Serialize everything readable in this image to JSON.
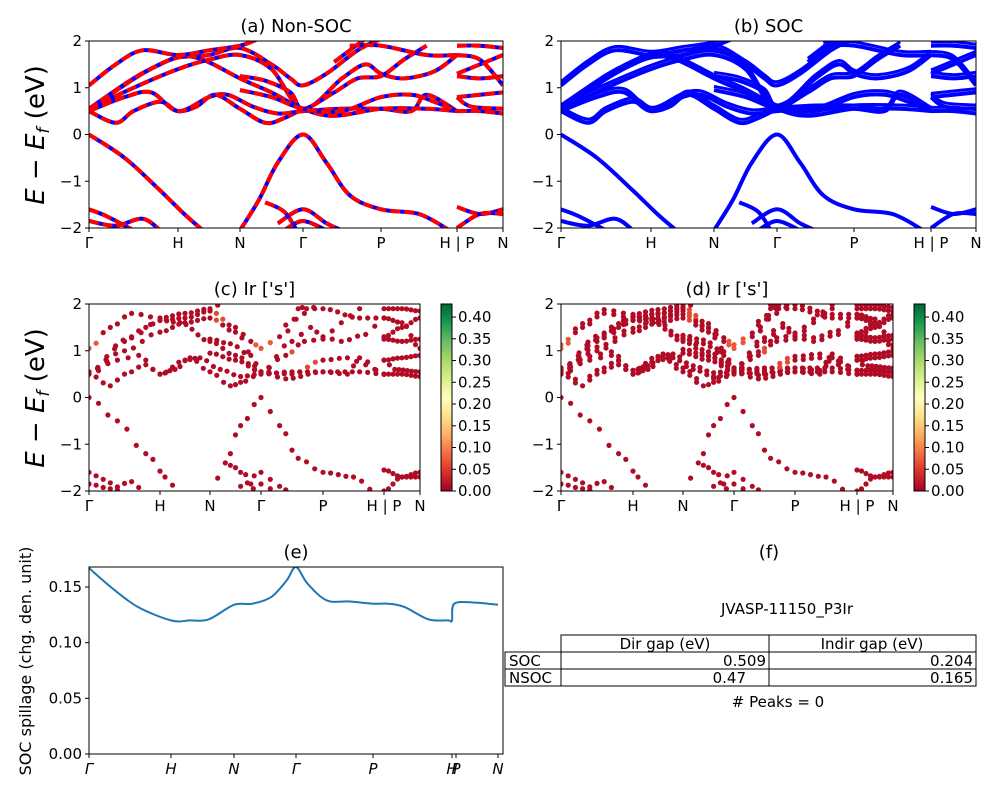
{
  "figure": {
    "material_id": "JVASP-11150_P3Ir",
    "peaks_text": "# Peaks = 0"
  },
  "chart_data": [
    {
      "id": "a",
      "type": "line",
      "title": "(a) Non-SOC",
      "ylabel": "E − E_f (eV)",
      "ylim": [
        -2,
        2
      ],
      "yticks": [
        "2",
        "1",
        "0",
        "−1",
        "−2"
      ],
      "ytick_values": [
        2,
        1,
        0,
        -1,
        -2
      ],
      "xticks": [
        "Γ",
        "H",
        "N",
        "Γ",
        "P",
        "H | P",
        "N"
      ],
      "style": "dashed red/blue overlay (spin up red, spin down blue)",
      "series_colors": [
        "#ff0000",
        "#0000ff"
      ]
    },
    {
      "id": "b",
      "type": "line",
      "title": "(b) SOC",
      "ylim": [
        -2,
        2
      ],
      "yticks": [
        "2",
        "1",
        "0",
        "−1",
        "−2"
      ],
      "ytick_values": [
        2,
        1,
        0,
        -1,
        -2
      ],
      "xticks": [
        "Γ",
        "H",
        "N",
        "Γ",
        "P",
        "H | P",
        "N"
      ],
      "series_colors": [
        "#0000ff"
      ]
    },
    {
      "id": "c",
      "type": "scatter",
      "title": "(c)  Ir ['s']",
      "ylabel": "E − E_f (eV)",
      "ylim": [
        -2,
        2
      ],
      "yticks": [
        "2",
        "1",
        "0",
        "−1",
        "−2"
      ],
      "ytick_values": [
        2,
        1,
        0,
        -1,
        -2
      ],
      "xticks": [
        "Γ",
        "H",
        "N",
        "Γ",
        "P",
        "H | P",
        "N"
      ],
      "colorbar": {
        "min": 0.0,
        "max": 0.43,
        "ticks": [
          "0.00",
          "0.05",
          "0.10",
          "0.15",
          "0.20",
          "0.25",
          "0.30",
          "0.35",
          "0.40"
        ],
        "tick_values": [
          0,
          0.05,
          0.1,
          0.15,
          0.2,
          0.25,
          0.3,
          0.35,
          0.4
        ],
        "colormap": "RdYlGn"
      }
    },
    {
      "id": "d",
      "type": "scatter",
      "title": "(d) Ir ['s']",
      "ylim": [
        -2,
        2
      ],
      "yticks": [
        "2",
        "1",
        "0",
        "−1",
        "−2"
      ],
      "ytick_values": [
        2,
        1,
        0,
        -1,
        -2
      ],
      "xticks": [
        "Γ",
        "H",
        "N",
        "Γ",
        "P",
        "H | P",
        "N"
      ],
      "colorbar": {
        "min": 0.0,
        "max": 0.43,
        "ticks": [
          "0.00",
          "0.05",
          "0.10",
          "0.15",
          "0.20",
          "0.25",
          "0.30",
          "0.35",
          "0.40"
        ],
        "tick_values": [
          0,
          0.05,
          0.1,
          0.15,
          0.2,
          0.25,
          0.3,
          0.35,
          0.4
        ],
        "colormap": "RdYlGn"
      }
    },
    {
      "id": "e",
      "type": "line",
      "title": "(e)",
      "ylabel": "SOC spillage (chg. den. unit)",
      "ylim": [
        0,
        0.168
      ],
      "yticks": [
        "0.15",
        "0.10",
        "0.05",
        "0.00"
      ],
      "ytick_values": [
        0.15,
        0.1,
        0.05,
        0.0
      ],
      "xticks": [
        "Γ",
        "H",
        "N",
        "Γ",
        "P",
        "H",
        "P",
        "N"
      ],
      "series_colors": [
        "#1f77b4"
      ],
      "x": [
        0,
        0.3,
        0.6,
        1.0,
        1.3,
        1.6,
        2.0,
        2.3,
        2.6,
        2.85,
        3.0,
        3.15,
        3.4,
        3.7,
        4.0,
        4.2,
        4.4,
        4.7,
        4.95,
        5.0,
        5.05,
        5.5,
        6.0
      ],
      "values": [
        0.167,
        0.148,
        0.132,
        0.12,
        0.12,
        0.121,
        0.134,
        0.135,
        0.141,
        0.156,
        0.168,
        0.153,
        0.138,
        0.137,
        0.135,
        0.135,
        0.132,
        0.121,
        0.12,
        0.12,
        0.135,
        0.136,
        0.134
      ]
    },
    {
      "id": "f",
      "type": "table",
      "title": "(f)",
      "subtitle": "JVASP-11150_P3Ir",
      "columns": [
        "Dir gap (eV)",
        "Indir gap (eV)"
      ],
      "rows": [
        {
          "label": "SOC",
          "values": [
            "0.509",
            "0.204"
          ]
        },
        {
          "label": "NSOC",
          "values": [
            "0.47",
            "0.165"
          ]
        }
      ],
      "footer": "# Peaks = 0"
    }
  ],
  "bands": {
    "common": [
      [
        [
          0,
          0
        ],
        [
          0.4,
          -0.5
        ],
        [
          0.8,
          -1.2
        ],
        [
          1.1,
          -1.7
        ],
        [
          1.4,
          -2.05
        ]
      ],
      [
        [
          2.0,
          -2.05
        ],
        [
          2.3,
          -1.4
        ],
        [
          2.6,
          -0.6
        ],
        [
          3.0,
          0.0
        ],
        [
          3.3,
          -0.6
        ],
        [
          3.6,
          -1.3
        ],
        [
          4.0,
          -1.6
        ],
        [
          4.5,
          -1.7
        ],
        [
          4.9,
          -2.05
        ]
      ],
      [
        [
          0,
          0.5
        ],
        [
          0.3,
          0.25
        ],
        [
          0.5,
          0.5
        ],
        [
          0.8,
          0.7
        ],
        [
          1.0,
          0.5
        ],
        [
          1.3,
          0.6
        ],
        [
          1.6,
          0.85
        ],
        [
          2.0,
          0.55
        ],
        [
          2.4,
          0.25
        ],
        [
          2.7,
          0.35
        ],
        [
          3.0,
          0.55
        ]
      ],
      [
        [
          0,
          0.5
        ],
        [
          0.4,
          0.8
        ],
        [
          0.7,
          0.9
        ],
        [
          1.0,
          0.5
        ],
        [
          1.5,
          0.8
        ],
        [
          1.8,
          0.85
        ],
        [
          2.2,
          0.6
        ],
        [
          2.6,
          0.45
        ],
        [
          3.0,
          0.5
        ],
        [
          3.5,
          0.55
        ],
        [
          4.0,
          0.55
        ],
        [
          4.4,
          0.5
        ],
        [
          4.6,
          0.85
        ],
        [
          5.0,
          0.5
        ]
      ],
      [
        [
          0,
          0.55
        ],
        [
          0.5,
          1.2
        ],
        [
          0.8,
          1.5
        ],
        [
          1.0,
          1.65
        ],
        [
          1.5,
          1.7
        ],
        [
          2.0,
          1.85
        ],
        [
          2.5,
          1.5
        ],
        [
          2.8,
          1.2
        ],
        [
          3.0,
          1.05
        ],
        [
          3.3,
          1.3
        ],
        [
          3.7,
          1.8
        ],
        [
          4.0,
          2.05
        ]
      ],
      [
        [
          0,
          0.55
        ],
        [
          0.6,
          1.3
        ],
        [
          1.0,
          1.65
        ],
        [
          1.4,
          1.6
        ],
        [
          2.0,
          1.2
        ],
        [
          2.5,
          0.9
        ],
        [
          3.0,
          0.55
        ],
        [
          3.4,
          0.4
        ],
        [
          4.0,
          0.55
        ],
        [
          4.6,
          0.55
        ],
        [
          5.0,
          0.5
        ]
      ],
      [
        [
          0,
          1.05
        ],
        [
          0.3,
          1.5
        ],
        [
          0.6,
          1.8
        ],
        [
          1.0,
          1.7
        ],
        [
          1.5,
          1.8
        ],
        [
          2.0,
          1.9
        ],
        [
          2.3,
          2.05
        ]
      ],
      [
        [
          0,
          0.55
        ],
        [
          0.5,
          1.0
        ],
        [
          1.0,
          1.4
        ],
        [
          1.5,
          1.6
        ],
        [
          2.0,
          1.7
        ],
        [
          2.5,
          1.4
        ],
        [
          3.0,
          0.55
        ],
        [
          3.5,
          1.2
        ],
        [
          3.8,
          1.5
        ],
        [
          4.0,
          1.3
        ],
        [
          4.3,
          1.2
        ],
        [
          4.7,
          1.35
        ],
        [
          5.0,
          1.7
        ]
      ],
      [
        [
          2.0,
          1.25
        ],
        [
          2.4,
          1.15
        ],
        [
          2.8,
          0.9
        ],
        [
          3.0,
          0.55
        ],
        [
          3.4,
          0.9
        ],
        [
          3.7,
          1.2
        ],
        [
          4.0,
          1.25
        ],
        [
          4.3,
          1.6
        ],
        [
          4.6,
          1.9
        ]
      ],
      [
        [
          2.0,
          0.95
        ],
        [
          2.5,
          0.8
        ],
        [
          3.0,
          0.55
        ],
        [
          3.5,
          0.5
        ],
        [
          4.0,
          0.8
        ],
        [
          4.4,
          0.85
        ],
        [
          4.7,
          0.7
        ],
        [
          5.0,
          0.5
        ]
      ],
      [
        [
          3.4,
          1.55
        ],
        [
          3.8,
          2.05
        ]
      ],
      [
        [
          3.6,
          1.9
        ],
        [
          4.0,
          1.9
        ],
        [
          4.6,
          1.7
        ],
        [
          5.0,
          1.7
        ]
      ],
      [
        [
          0,
          -1.6
        ],
        [
          0.2,
          -1.75
        ],
        [
          0.5,
          -2.05
        ]
      ],
      [
        [
          0,
          -1.85
        ],
        [
          0.3,
          -1.95
        ],
        [
          0.6,
          -1.8
        ],
        [
          0.8,
          -2.05
        ]
      ],
      [
        [
          2.4,
          -1.45
        ],
        [
          2.7,
          -1.65
        ],
        [
          2.9,
          -2.05
        ]
      ],
      [
        [
          2.6,
          -1.9
        ],
        [
          3.0,
          -1.6
        ],
        [
          3.3,
          -1.9
        ],
        [
          3.5,
          -2.05
        ]
      ],
      [
        [
          2.7,
          -2.05
        ],
        [
          3.0,
          -1.85
        ],
        [
          3.3,
          -2.05
        ]
      ],
      [
        [
          5.0,
          -1.55
        ],
        [
          5.5,
          -1.7
        ],
        [
          6.0,
          -1.6
        ]
      ],
      [
        [
          5.0,
          -2.0
        ],
        [
          5.5,
          -1.7
        ],
        [
          6.0,
          -1.7
        ]
      ],
      [
        [
          5.0,
          0.5
        ],
        [
          5.5,
          0.5
        ],
        [
          6.0,
          0.45
        ]
      ],
      [
        [
          5.0,
          0.8
        ],
        [
          5.5,
          0.85
        ],
        [
          6.0,
          0.9
        ]
      ],
      [
        [
          5.0,
          0.8
        ],
        [
          5.3,
          0.6
        ],
        [
          6.0,
          0.55
        ]
      ],
      [
        [
          5.0,
          1.25
        ],
        [
          5.5,
          1.2
        ],
        [
          6.0,
          1.25
        ]
      ],
      [
        [
          5.0,
          1.3
        ],
        [
          5.5,
          1.5
        ],
        [
          6.0,
          1.7
        ]
      ],
      [
        [
          5.0,
          1.9
        ],
        [
          5.5,
          1.9
        ],
        [
          6.0,
          1.85
        ]
      ],
      [
        [
          5.0,
          1.7
        ],
        [
          5.5,
          1.6
        ],
        [
          6.0,
          1.05
        ]
      ]
    ]
  }
}
